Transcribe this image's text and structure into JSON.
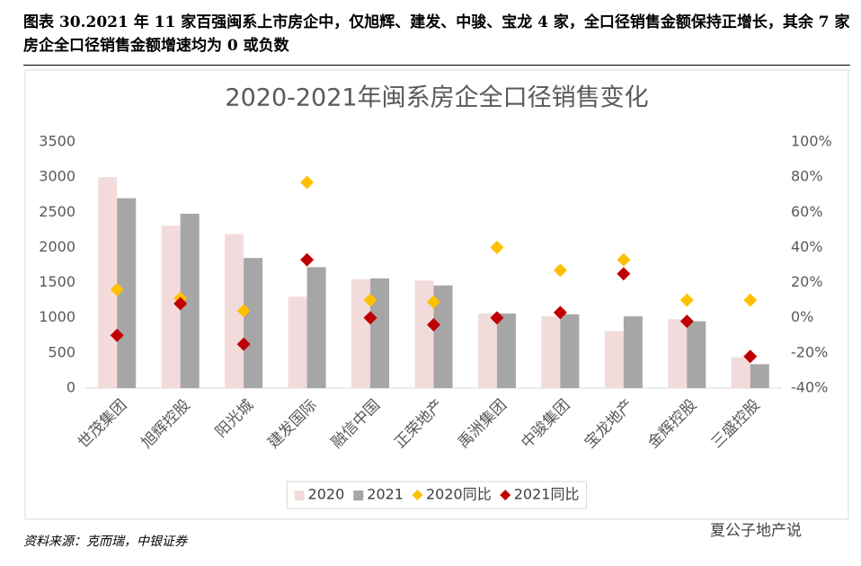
{
  "header": {
    "title": "图表 30.2021 年 11 家百强闽系上市房企中，仅旭辉、建发、中骏、宝龙 4 家，全口径销售金额保持正增长，其余 7 家房企全口径销售金额增速均为 0 或负数"
  },
  "chart_data": {
    "type": "bar",
    "title": "2020-2021年闽系房企全口径销售变化",
    "categories": [
      "世茂集团",
      "旭辉控股",
      "阳光城",
      "建发国际",
      "融信中国",
      "正荣地产",
      "禹洲集团",
      "中骏集团",
      "宝龙地产",
      "金辉控股",
      "三盛控股"
    ],
    "series": [
      {
        "name": "2020",
        "type": "bar",
        "color": "#f2dcdb",
        "values": [
          3000,
          2310,
          2190,
          1300,
          1550,
          1530,
          1060,
          1020,
          810,
          980,
          440
        ]
      },
      {
        "name": "2021",
        "type": "bar",
        "color": "#a6a6a6",
        "values": [
          2700,
          2480,
          1850,
          1720,
          1560,
          1460,
          1060,
          1050,
          1020,
          950,
          340
        ]
      },
      {
        "name": "2020同比",
        "type": "scatter",
        "axis": "y2",
        "color": "#ffc000",
        "values": [
          16,
          11,
          4,
          77,
          10,
          9,
          40,
          27,
          33,
          10,
          10
        ]
      },
      {
        "name": "2021同比",
        "type": "scatter",
        "axis": "y2",
        "color": "#c00000",
        "values": [
          -10,
          8,
          -15,
          33,
          0,
          -4,
          0,
          3,
          25,
          -2,
          -22
        ]
      }
    ],
    "ylim": [
      0,
      3500
    ],
    "yticks": [
      0,
      500,
      1000,
      1500,
      2000,
      2500,
      3000,
      3500
    ],
    "y2lim": [
      -40,
      100
    ],
    "y2ticks": [
      {
        "value": -40,
        "label": "-40%"
      },
      {
        "value": -20,
        "label": "-20%"
      },
      {
        "value": 0,
        "label": "0%"
      },
      {
        "value": 20,
        "label": "20%"
      },
      {
        "value": 40,
        "label": "40%"
      },
      {
        "value": 60,
        "label": "60%"
      },
      {
        "value": 80,
        "label": "80%"
      },
      {
        "value": 100,
        "label": "100%"
      }
    ],
    "grid": false,
    "legend": "bottom"
  },
  "footer": {
    "source": "资料来源：克而瑞，中银证券",
    "watermark": "夏公子地产说"
  }
}
